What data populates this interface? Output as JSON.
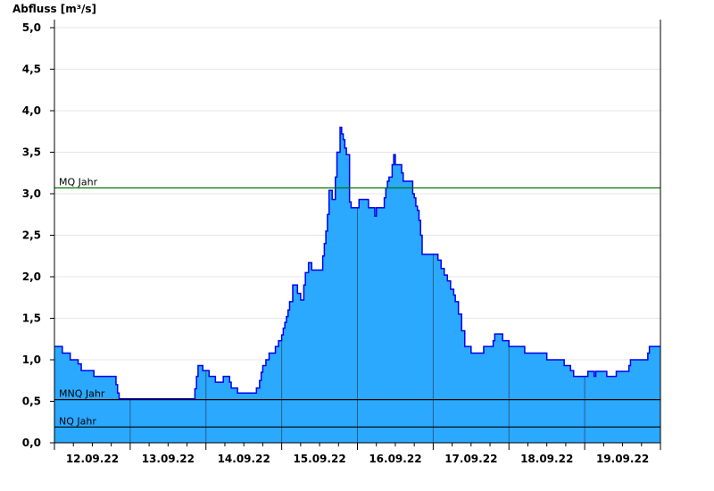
{
  "chart_data": {
    "type": "area",
    "title": "Abfluss [m³/s]",
    "xlabel": "",
    "ylabel": "Abfluss [m³/s]",
    "xlim": [
      "2022-09-12T00:00",
      "2022-09-20T00:00"
    ],
    "ylim": [
      0,
      5
    ],
    "yticks": [
      0,
      0.5,
      1,
      1.5,
      2,
      2.5,
      3,
      3.5,
      4,
      4.5,
      5
    ],
    "ytick_labels": [
      "0,0",
      "0,5",
      "1,0",
      "1,5",
      "2,0",
      "2,5",
      "3,0",
      "3,5",
      "4,0",
      "4,5",
      "5,0"
    ],
    "xtick_labels": [
      "12.09.22",
      "13.09.22",
      "14.09.22",
      "15.09.22",
      "16.09.22",
      "17.09.22",
      "18.09.22",
      "19.09.22"
    ],
    "grid": true,
    "colors": {
      "fill": "#2aa9ff",
      "line": "#0000ee",
      "mq": "#007700",
      "ref": "#000000",
      "grid": "#e6e6e6"
    },
    "reference_lines": [
      {
        "label": "MQ Jahr",
        "value": 3.07,
        "color": "#007700"
      },
      {
        "label": "MNQ Jahr",
        "value": 0.52,
        "color": "#000000"
      },
      {
        "label": "NQ Jahr",
        "value": 0.19,
        "color": "#000000"
      }
    ],
    "series": [
      {
        "step": "post",
        "points": [
          [
            "2022-09-12T00:00",
            1.16
          ],
          [
            "2022-09-12T02:30",
            1.08
          ],
          [
            "2022-09-12T05:00",
            1.0
          ],
          [
            "2022-09-12T07:30",
            0.95
          ],
          [
            "2022-09-12T08:30",
            0.87
          ],
          [
            "2022-09-12T12:30",
            0.8
          ],
          [
            "2022-09-12T19:30",
            0.7
          ],
          [
            "2022-09-12T20:00",
            0.6
          ],
          [
            "2022-09-12T20:30",
            0.53
          ],
          [
            "2022-09-13T20:30",
            0.65
          ],
          [
            "2022-09-13T21:00",
            0.8
          ],
          [
            "2022-09-13T21:30",
            0.93
          ],
          [
            "2022-09-13T23:00",
            0.87
          ],
          [
            "2022-09-14T01:00",
            0.8
          ],
          [
            "2022-09-14T03:00",
            0.73
          ],
          [
            "2022-09-14T05:30",
            0.8
          ],
          [
            "2022-09-14T07:30",
            0.73
          ],
          [
            "2022-09-14T08:00",
            0.66
          ],
          [
            "2022-09-14T10:00",
            0.6
          ],
          [
            "2022-09-14T16:00",
            0.66
          ],
          [
            "2022-09-14T17:00",
            0.75
          ],
          [
            "2022-09-14T17:30",
            0.85
          ],
          [
            "2022-09-14T18:00",
            0.93
          ],
          [
            "2022-09-14T19:00",
            1.0
          ],
          [
            "2022-09-14T20:00",
            1.08
          ],
          [
            "2022-09-14T22:00",
            1.16
          ],
          [
            "2022-09-14T23:00",
            1.23
          ],
          [
            "2022-09-15T00:00",
            1.3
          ],
          [
            "2022-09-15T00:30",
            1.38
          ],
          [
            "2022-09-15T01:00",
            1.45
          ],
          [
            "2022-09-15T01:30",
            1.52
          ],
          [
            "2022-09-15T02:00",
            1.6
          ],
          [
            "2022-09-15T02:30",
            1.7
          ],
          [
            "2022-09-15T03:30",
            1.9
          ],
          [
            "2022-09-15T05:00",
            1.8
          ],
          [
            "2022-09-15T06:00",
            1.72
          ],
          [
            "2022-09-15T07:00",
            1.9
          ],
          [
            "2022-09-15T07:30",
            2.05
          ],
          [
            "2022-09-15T08:30",
            2.17
          ],
          [
            "2022-09-15T09:30",
            2.08
          ],
          [
            "2022-09-15T13:00",
            2.25
          ],
          [
            "2022-09-15T13:30",
            2.4
          ],
          [
            "2022-09-15T14:00",
            2.55
          ],
          [
            "2022-09-15T14:30",
            2.75
          ],
          [
            "2022-09-15T15:00",
            3.04
          ],
          [
            "2022-09-15T16:00",
            2.93
          ],
          [
            "2022-09-15T17:00",
            3.2
          ],
          [
            "2022-09-15T17:30",
            3.5
          ],
          [
            "2022-09-15T18:30",
            3.8
          ],
          [
            "2022-09-15T19:00",
            3.72
          ],
          [
            "2022-09-15T19:30",
            3.65
          ],
          [
            "2022-09-15T20:00",
            3.55
          ],
          [
            "2022-09-15T20:30",
            3.47
          ],
          [
            "2022-09-15T21:30",
            2.9
          ],
          [
            "2022-09-15T22:00",
            2.83
          ],
          [
            "2022-09-16T00:30",
            2.93
          ],
          [
            "2022-09-16T03:30",
            2.83
          ],
          [
            "2022-09-16T05:30",
            2.73
          ],
          [
            "2022-09-16T06:00",
            2.83
          ],
          [
            "2022-09-16T08:30",
            2.95
          ],
          [
            "2022-09-16T09:00",
            3.07
          ],
          [
            "2022-09-16T09:30",
            3.15
          ],
          [
            "2022-09-16T10:00",
            3.2
          ],
          [
            "2022-09-16T11:00",
            3.35
          ],
          [
            "2022-09-16T11:30",
            3.47
          ],
          [
            "2022-09-16T12:00",
            3.35
          ],
          [
            "2022-09-16T14:00",
            3.25
          ],
          [
            "2022-09-16T14:30",
            3.15
          ],
          [
            "2022-09-16T17:30",
            3.0
          ],
          [
            "2022-09-16T18:00",
            2.95
          ],
          [
            "2022-09-16T18:30",
            2.85
          ],
          [
            "2022-09-16T19:00",
            2.8
          ],
          [
            "2022-09-16T19:30",
            2.68
          ],
          [
            "2022-09-16T20:00",
            2.5
          ],
          [
            "2022-09-16T20:30",
            2.27
          ],
          [
            "2022-09-17T01:30",
            2.2
          ],
          [
            "2022-09-17T02:30",
            2.1
          ],
          [
            "2022-09-17T03:30",
            2.02
          ],
          [
            "2022-09-17T04:30",
            1.95
          ],
          [
            "2022-09-17T05:30",
            1.85
          ],
          [
            "2022-09-17T06:30",
            1.78
          ],
          [
            "2022-09-17T07:00",
            1.7
          ],
          [
            "2022-09-17T08:00",
            1.55
          ],
          [
            "2022-09-17T09:00",
            1.35
          ],
          [
            "2022-09-17T10:00",
            1.16
          ],
          [
            "2022-09-17T12:00",
            1.08
          ],
          [
            "2022-09-17T16:00",
            1.16
          ],
          [
            "2022-09-17T19:00",
            1.23
          ],
          [
            "2022-09-17T19:30",
            1.31
          ],
          [
            "2022-09-17T22:00",
            1.23
          ],
          [
            "2022-09-18T00:00",
            1.16
          ],
          [
            "2022-09-18T05:00",
            1.08
          ],
          [
            "2022-09-18T12:00",
            1.0
          ],
          [
            "2022-09-18T17:30",
            0.93
          ],
          [
            "2022-09-18T19:30",
            0.87
          ],
          [
            "2022-09-18T20:30",
            0.8
          ],
          [
            "2022-09-19T01:00",
            0.86
          ],
          [
            "2022-09-19T03:00",
            0.8
          ],
          [
            "2022-09-19T03:30",
            0.86
          ],
          [
            "2022-09-19T07:00",
            0.8
          ],
          [
            "2022-09-19T10:00",
            0.86
          ],
          [
            "2022-09-19T14:00",
            0.93
          ],
          [
            "2022-09-19T14:30",
            1.0
          ],
          [
            "2022-09-19T20:00",
            1.08
          ],
          [
            "2022-09-19T20:30",
            1.16
          ]
        ]
      }
    ]
  }
}
